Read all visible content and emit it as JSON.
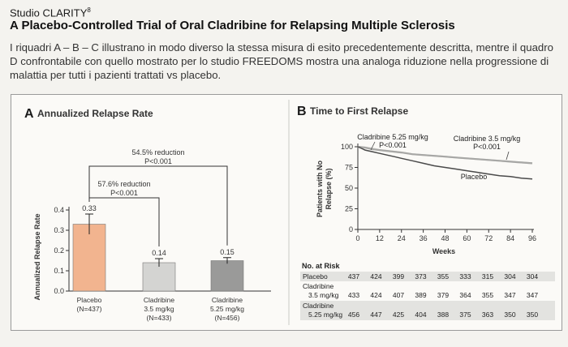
{
  "header": {
    "kicker": "Studio CLARITY",
    "kicker_sup": "8",
    "title": "A Placebo-Controlled Trial of Oral Cladribine for Relapsing Multiple Sclerosis",
    "intro": "I riquadri A – B – C illustrano in modo diverso la stessa misura di esito precedentemente descritta, mentre il quadro D confrontabile con quello mostrato per lo studio FREEDOMS mostra una analoga riduzione nella progressione di malattia per tutti i pazienti trattati vs placebo."
  },
  "chart_data": [
    {
      "type": "bar",
      "panel_letter": "A",
      "title": "Annualized Relapse Rate",
      "ylabel": "Annualized Relapse Rate",
      "ylim": [
        0,
        0.4
      ],
      "yticks": [
        "0.0",
        "0.1",
        "0.2",
        "0.3",
        "0.4"
      ],
      "categories": [
        {
          "lines": [
            "Placebo",
            "(N=437)"
          ],
          "value": 0.33,
          "label": "0.33",
          "error": 0.05,
          "color": "#f2b48f"
        },
        {
          "lines": [
            "Cladribine",
            "3.5 mg/kg",
            "(N=433)"
          ],
          "value": 0.14,
          "label": "0.14",
          "error": 0.02,
          "color": "#d4d4d2"
        },
        {
          "lines": [
            "Cladribine",
            "5.25 mg/kg",
            "(N=456)"
          ],
          "value": 0.15,
          "label": "0.15",
          "error": 0.015,
          "color": "#9a9a99"
        }
      ],
      "annotations": [
        {
          "line1": "57.6% reduction",
          "line2": "P<0.001",
          "from": 0,
          "to": 1
        },
        {
          "line1": "54.5% reduction",
          "line2": "P<0.001",
          "from": 0,
          "to": 2
        }
      ]
    },
    {
      "type": "line",
      "panel_letter": "B",
      "title": "Time to First Relapse",
      "ylabel_lines": [
        "Patients with No",
        "Relapse (%)"
      ],
      "xlabel": "Weeks",
      "xlim": [
        0,
        96
      ],
      "ylim": [
        0,
        100
      ],
      "xticks": [
        "0",
        "12",
        "24",
        "36",
        "48",
        "60",
        "72",
        "84",
        "96"
      ],
      "yticks": [
        "0",
        "25",
        "50",
        "75",
        "100"
      ],
      "series": [
        {
          "name": "Placebo",
          "color": "#4a4a4a",
          "x": [
            0,
            2,
            4,
            8,
            12,
            16,
            20,
            24,
            30,
            36,
            42,
            48,
            54,
            60,
            66,
            72,
            78,
            84,
            90,
            96
          ],
          "y": [
            100,
            98,
            96,
            94,
            92,
            90,
            88,
            86,
            83,
            80,
            77,
            75,
            73,
            71,
            69,
            67,
            65,
            64,
            62,
            61
          ]
        },
        {
          "name": "Cladribine 3.5 mg/kg",
          "color": "#d9d9d6",
          "x": [
            0,
            4,
            8,
            12,
            16,
            20,
            24,
            30,
            36,
            42,
            48,
            54,
            60,
            66,
            72,
            78,
            84,
            90,
            96
          ],
          "y": [
            100,
            99,
            98,
            96,
            95,
            94,
            93,
            91,
            90,
            89,
            88,
            87,
            86,
            85,
            84,
            83,
            82,
            81,
            80
          ]
        },
        {
          "name": "Cladribine 5.25 mg/kg",
          "color": "#a7a7a5",
          "x": [
            0,
            4,
            8,
            12,
            16,
            20,
            24,
            30,
            36,
            42,
            48,
            54,
            60,
            66,
            72,
            78,
            84,
            90,
            96
          ],
          "y": [
            100,
            99,
            97,
            96,
            95,
            94,
            93,
            91,
            90,
            89,
            88,
            87,
            86,
            85,
            84,
            83,
            82,
            81,
            80
          ]
        }
      ],
      "callouts": [
        {
          "lines": [
            "Cladribine 5.25 mg/kg",
            "P<0.001"
          ]
        },
        {
          "lines": [
            "Cladribine 3.5 mg/kg",
            "P<0.001"
          ]
        },
        {
          "lines": [
            "Placebo"
          ]
        }
      ],
      "risk_table": {
        "title": "No. at Risk",
        "rows": [
          {
            "label": [
              "Placebo"
            ],
            "values": [
              "437",
              "424",
              "399",
              "373",
              "355",
              "333",
              "315",
              "304",
              "304"
            ]
          },
          {
            "label": [
              "Cladribine",
              "3.5 mg/kg"
            ],
            "values": [
              "433",
              "424",
              "407",
              "389",
              "379",
              "364",
              "355",
              "347",
              "347"
            ]
          },
          {
            "label": [
              "Cladribine",
              "5.25 mg/kg"
            ],
            "values": [
              "456",
              "447",
              "425",
              "404",
              "388",
              "375",
              "363",
              "350",
              "350"
            ]
          }
        ]
      }
    }
  ]
}
